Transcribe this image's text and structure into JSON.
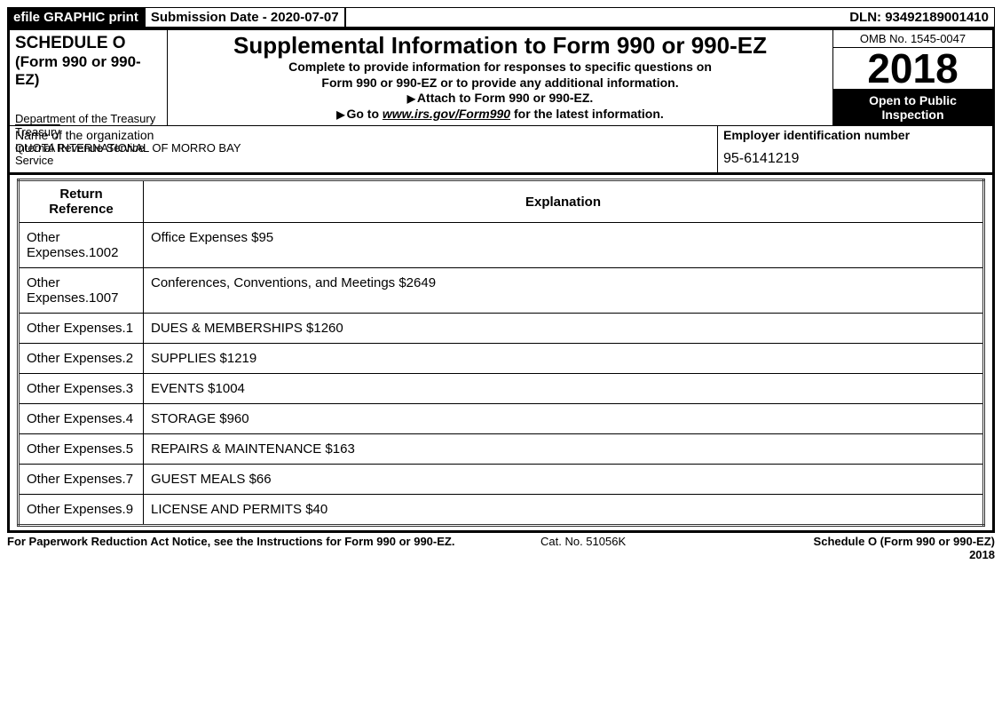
{
  "topbar": {
    "left": "efile GRAPHIC print",
    "mid": "Submission Date - 2020-07-07",
    "right": "DLN: 93492189001410"
  },
  "header": {
    "schedule": "SCHEDULE O",
    "form": "(Form 990 or 990-EZ)",
    "dept": "Department of the Treasury",
    "irs": "Internal Revenue Service",
    "title": "Supplemental Information to Form 990 or 990-EZ",
    "line1": "Complete to provide information for responses to specific questions on",
    "line2": "Form 990 or 990-EZ or to provide any additional information.",
    "attach": "Attach to Form 990 or 990-EZ.",
    "goto_pre": "Go to ",
    "goto_link": "www.irs.gov/Form990",
    "goto_post": " for the latest information.",
    "omb": "OMB No. 1545-0047",
    "year": "2018",
    "open1": "Open to Public",
    "open2": "Inspection"
  },
  "org": {
    "label": "Name of the organization",
    "name": "QUOTA INTERNATIONAL OF MORRO BAY",
    "ein_label": "Employer identification number",
    "ein": "95-6141219"
  },
  "table": {
    "headers": [
      "Return Reference",
      "Explanation"
    ],
    "rows": [
      [
        "Other Expenses.1002",
        "Office Expenses $95"
      ],
      [
        "Other Expenses.1007",
        "Conferences, Conventions, and Meetings $2649"
      ],
      [
        "Other Expenses.1",
        "DUES & MEMBERSHIPS $1260"
      ],
      [
        "Other Expenses.2",
        "SUPPLIES $1219"
      ],
      [
        "Other Expenses.3",
        "EVENTS $1004"
      ],
      [
        "Other Expenses.4",
        "STORAGE $960"
      ],
      [
        "Other Expenses.5",
        "REPAIRS & MAINTENANCE $163"
      ],
      [
        "Other Expenses.7",
        "GUEST MEALS $66"
      ],
      [
        "Other Expenses.9",
        "LICENSE AND PERMITS $40"
      ]
    ]
  },
  "footer": {
    "left": "For Paperwork Reduction Act Notice, see the Instructions for Form 990 or 990-EZ.",
    "mid": "Cat. No. 51056K",
    "right1": "Schedule O (Form 990 or 990-EZ)",
    "right2": "2018"
  }
}
